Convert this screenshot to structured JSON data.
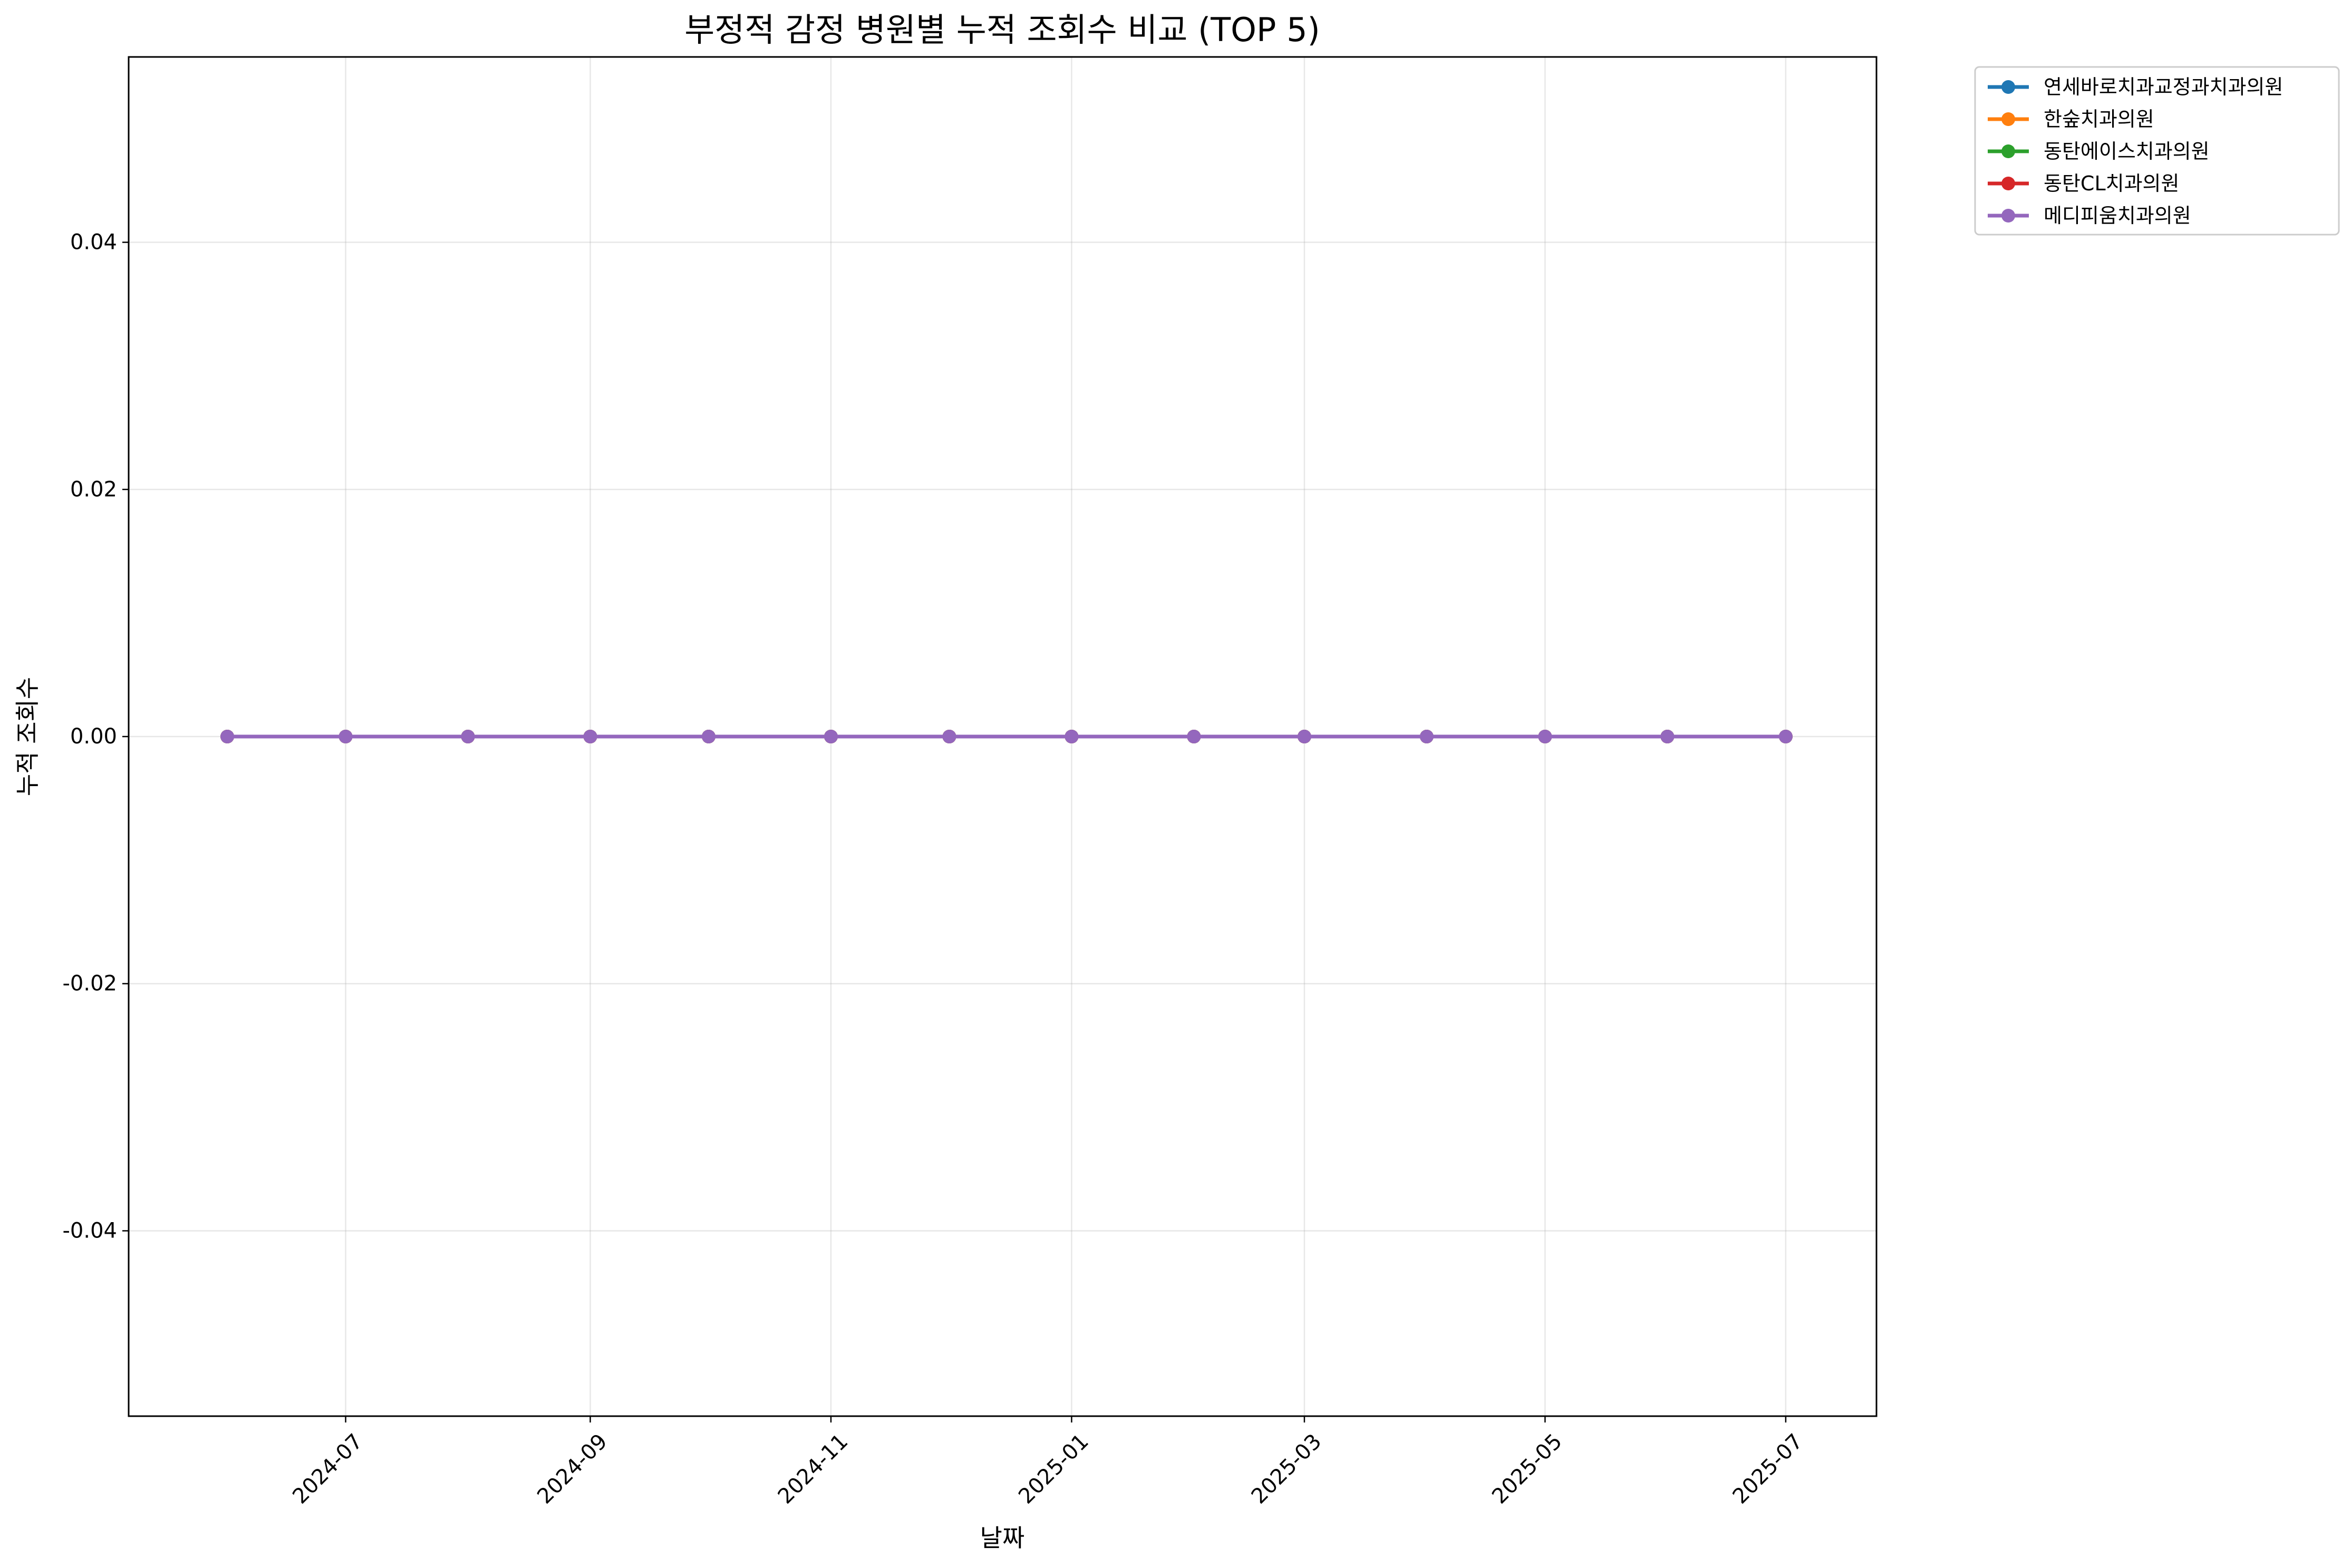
{
  "chart_data": {
    "type": "line",
    "title": "부정적 감정 병원별 누적 조회수 비교 (TOP 5)",
    "xlabel": "날짜",
    "ylabel": "누적 조회수",
    "x": [
      "2024-06-01",
      "2024-07-01",
      "2024-08-01",
      "2024-09-01",
      "2024-10-01",
      "2024-11-01",
      "2024-12-01",
      "2025-01-01",
      "2025-02-01",
      "2025-03-01",
      "2025-04-01",
      "2025-05-01",
      "2025-06-01",
      "2025-07-01"
    ],
    "xticks": [
      "2024-07",
      "2024-09",
      "2024-11",
      "2025-01",
      "2025-03",
      "2025-05",
      "2025-07"
    ],
    "xlim": [
      "2024-05-07",
      "2025-07-24"
    ],
    "ylim": [
      -0.055,
      0.055
    ],
    "yticks": [
      "0.04",
      "0.02",
      "0.00",
      "-0.02",
      "-0.04"
    ],
    "ytick_values": [
      0.04,
      0.02,
      0.0,
      -0.02,
      -0.04
    ],
    "grid": true,
    "legend_position": "outside top-right",
    "series": [
      {
        "name": "연세바로치과교정과치과의원",
        "color": "#1f77b4",
        "values": [
          0,
          0,
          0,
          0,
          0,
          0,
          0,
          0,
          0,
          0,
          0,
          0,
          0,
          0
        ]
      },
      {
        "name": "한숲치과의원",
        "color": "#ff7f0e",
        "values": [
          0,
          0,
          0,
          0,
          0,
          0,
          0,
          0,
          0,
          0,
          0,
          0,
          0,
          0
        ]
      },
      {
        "name": "동탄에이스치과의원",
        "color": "#2ca02c",
        "values": [
          0,
          0,
          0,
          0,
          0,
          0,
          0,
          0,
          0,
          0,
          0,
          0,
          0,
          0
        ]
      },
      {
        "name": "동탄CL치과의원",
        "color": "#d62728",
        "values": [
          0,
          0,
          0,
          0,
          0,
          0,
          0,
          0,
          0,
          0,
          0,
          0,
          0,
          0
        ]
      },
      {
        "name": "메디피움치과의원",
        "color": "#9467bd",
        "values": [
          0,
          0,
          0,
          0,
          0,
          0,
          0,
          0,
          0,
          0,
          0,
          0,
          0,
          0
        ]
      }
    ]
  }
}
